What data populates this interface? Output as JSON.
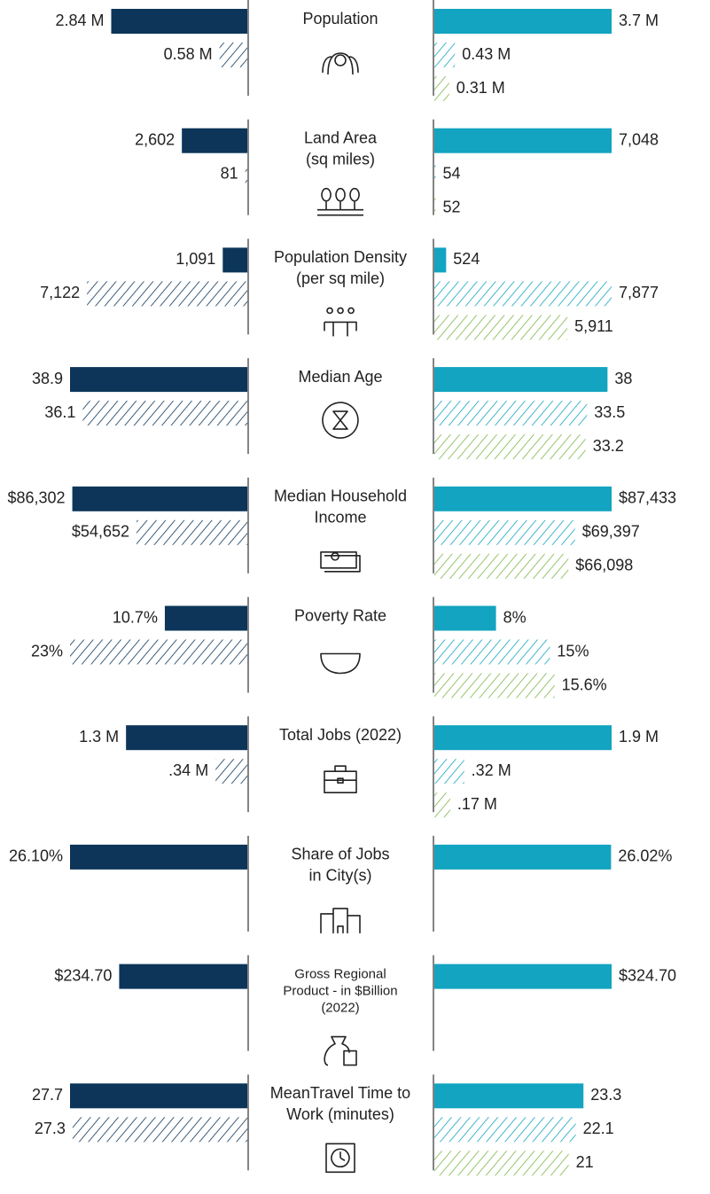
{
  "chart_data": {
    "type": "comparison-bar",
    "left_colors": [
      "#0c3559",
      "#0c3559"
    ],
    "right_colors": [
      "#12a4c0",
      "#12a4c0",
      "#7ab648"
    ],
    "metrics": [
      {
        "label": [
          "Population"
        ],
        "left": [
          2.84,
          0.58
        ],
        "left_labels": [
          "2.84 M",
          "0.58 M"
        ],
        "right": [
          3.7,
          0.43,
          0.31
        ],
        "right_labels": [
          "3.7 M",
          "0.43 M",
          "0.31 M"
        ]
      },
      {
        "label": [
          "Land Area",
          "(sq miles)"
        ],
        "left": [
          2602,
          81
        ],
        "left_labels": [
          "2,602",
          "81"
        ],
        "right": [
          7048,
          54,
          52
        ],
        "right_labels": [
          "7,048",
          "54",
          "52"
        ]
      },
      {
        "label": [
          "Population Density",
          "(per sq mile)"
        ],
        "left": [
          1091,
          7122
        ],
        "left_labels": [
          "1,091",
          "7,122"
        ],
        "right": [
          524,
          7877,
          5911
        ],
        "right_labels": [
          "524",
          "7,877",
          "5,911"
        ]
      },
      {
        "label": [
          "Median Age"
        ],
        "left": [
          38.9,
          36.1
        ],
        "left_labels": [
          "38.9",
          "36.1"
        ],
        "right": [
          38,
          33.5,
          33.2
        ],
        "right_labels": [
          "38",
          "33.5",
          "33.2"
        ]
      },
      {
        "label": [
          "Median Household",
          "Income"
        ],
        "left": [
          86302,
          54652
        ],
        "left_labels": [
          "$86,302",
          "$54,652"
        ],
        "right": [
          87433,
          69397,
          66098
        ],
        "right_labels": [
          "$87,433",
          "$69,397",
          "$66,098"
        ]
      },
      {
        "label": [
          "Poverty Rate"
        ],
        "left": [
          10.7,
          23
        ],
        "left_labels": [
          "10.7%",
          "23%"
        ],
        "right": [
          8,
          15,
          15.6
        ],
        "right_labels": [
          "8%",
          "15%",
          "15.6%"
        ]
      },
      {
        "label": [
          "Total Jobs (2022)"
        ],
        "left": [
          1.3,
          0.34
        ],
        "left_labels": [
          "1.3 M",
          ".34 M"
        ],
        "right": [
          1.9,
          0.32,
          0.17
        ],
        "right_labels": [
          "1.9 M",
          ".32 M",
          ".17 M"
        ]
      },
      {
        "label": [
          "Share of Jobs",
          "in City(s)"
        ],
        "left": [
          26.1
        ],
        "left_labels": [
          "26.10%"
        ],
        "right": [
          26.02
        ],
        "right_labels": [
          "26.02%"
        ]
      },
      {
        "label": [
          "Gross Regional",
          "Product - in $Billion",
          "(2022)"
        ],
        "left": [
          234.7
        ],
        "left_labels": [
          "$234.70"
        ],
        "right": [
          324.7
        ],
        "right_labels": [
          "$324.70"
        ]
      },
      {
        "label": [
          "MeanTravel Time to",
          "Work (minutes)"
        ],
        "left": [
          27.7,
          27.3
        ],
        "left_labels": [
          "27.7",
          "27.3"
        ],
        "right": [
          23.3,
          22.1,
          21
        ],
        "right_labels": [
          "23.3",
          "22.1",
          "21"
        ]
      }
    ]
  }
}
